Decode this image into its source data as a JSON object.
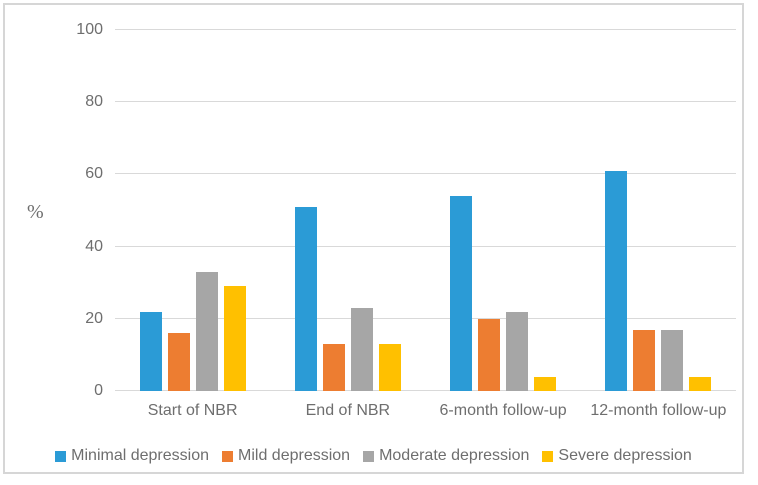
{
  "chart_data": {
    "type": "bar",
    "title": "",
    "categories": [
      "Start of NBR",
      "End of NBR",
      "6-month follow-up",
      "12-month follow-up"
    ],
    "series": [
      {
        "name": "Minimal depression",
        "color": "#2B9BD6",
        "values": [
          22,
          51,
          54,
          61
        ]
      },
      {
        "name": "Mild depression",
        "color": "#ED7D31",
        "values": [
          16,
          13,
          20,
          17
        ]
      },
      {
        "name": "Moderate depression",
        "color": "#A6A6A6",
        "values": [
          33,
          23,
          22,
          17
        ]
      },
      {
        "name": "Severe depression",
        "color": "#FFC000",
        "values": [
          29,
          13,
          4,
          4
        ]
      }
    ],
    "xlabel": "",
    "ylabel": "%",
    "ylim": [
      0,
      100
    ],
    "yticks": [
      0,
      20,
      40,
      60,
      80,
      100
    ],
    "grid": true,
    "legend_position": "bottom",
    "gridline_color": "#D9D9D9",
    "axis_text_color": "#6E6E6E",
    "frame_border_color": "#D6D6D6"
  }
}
